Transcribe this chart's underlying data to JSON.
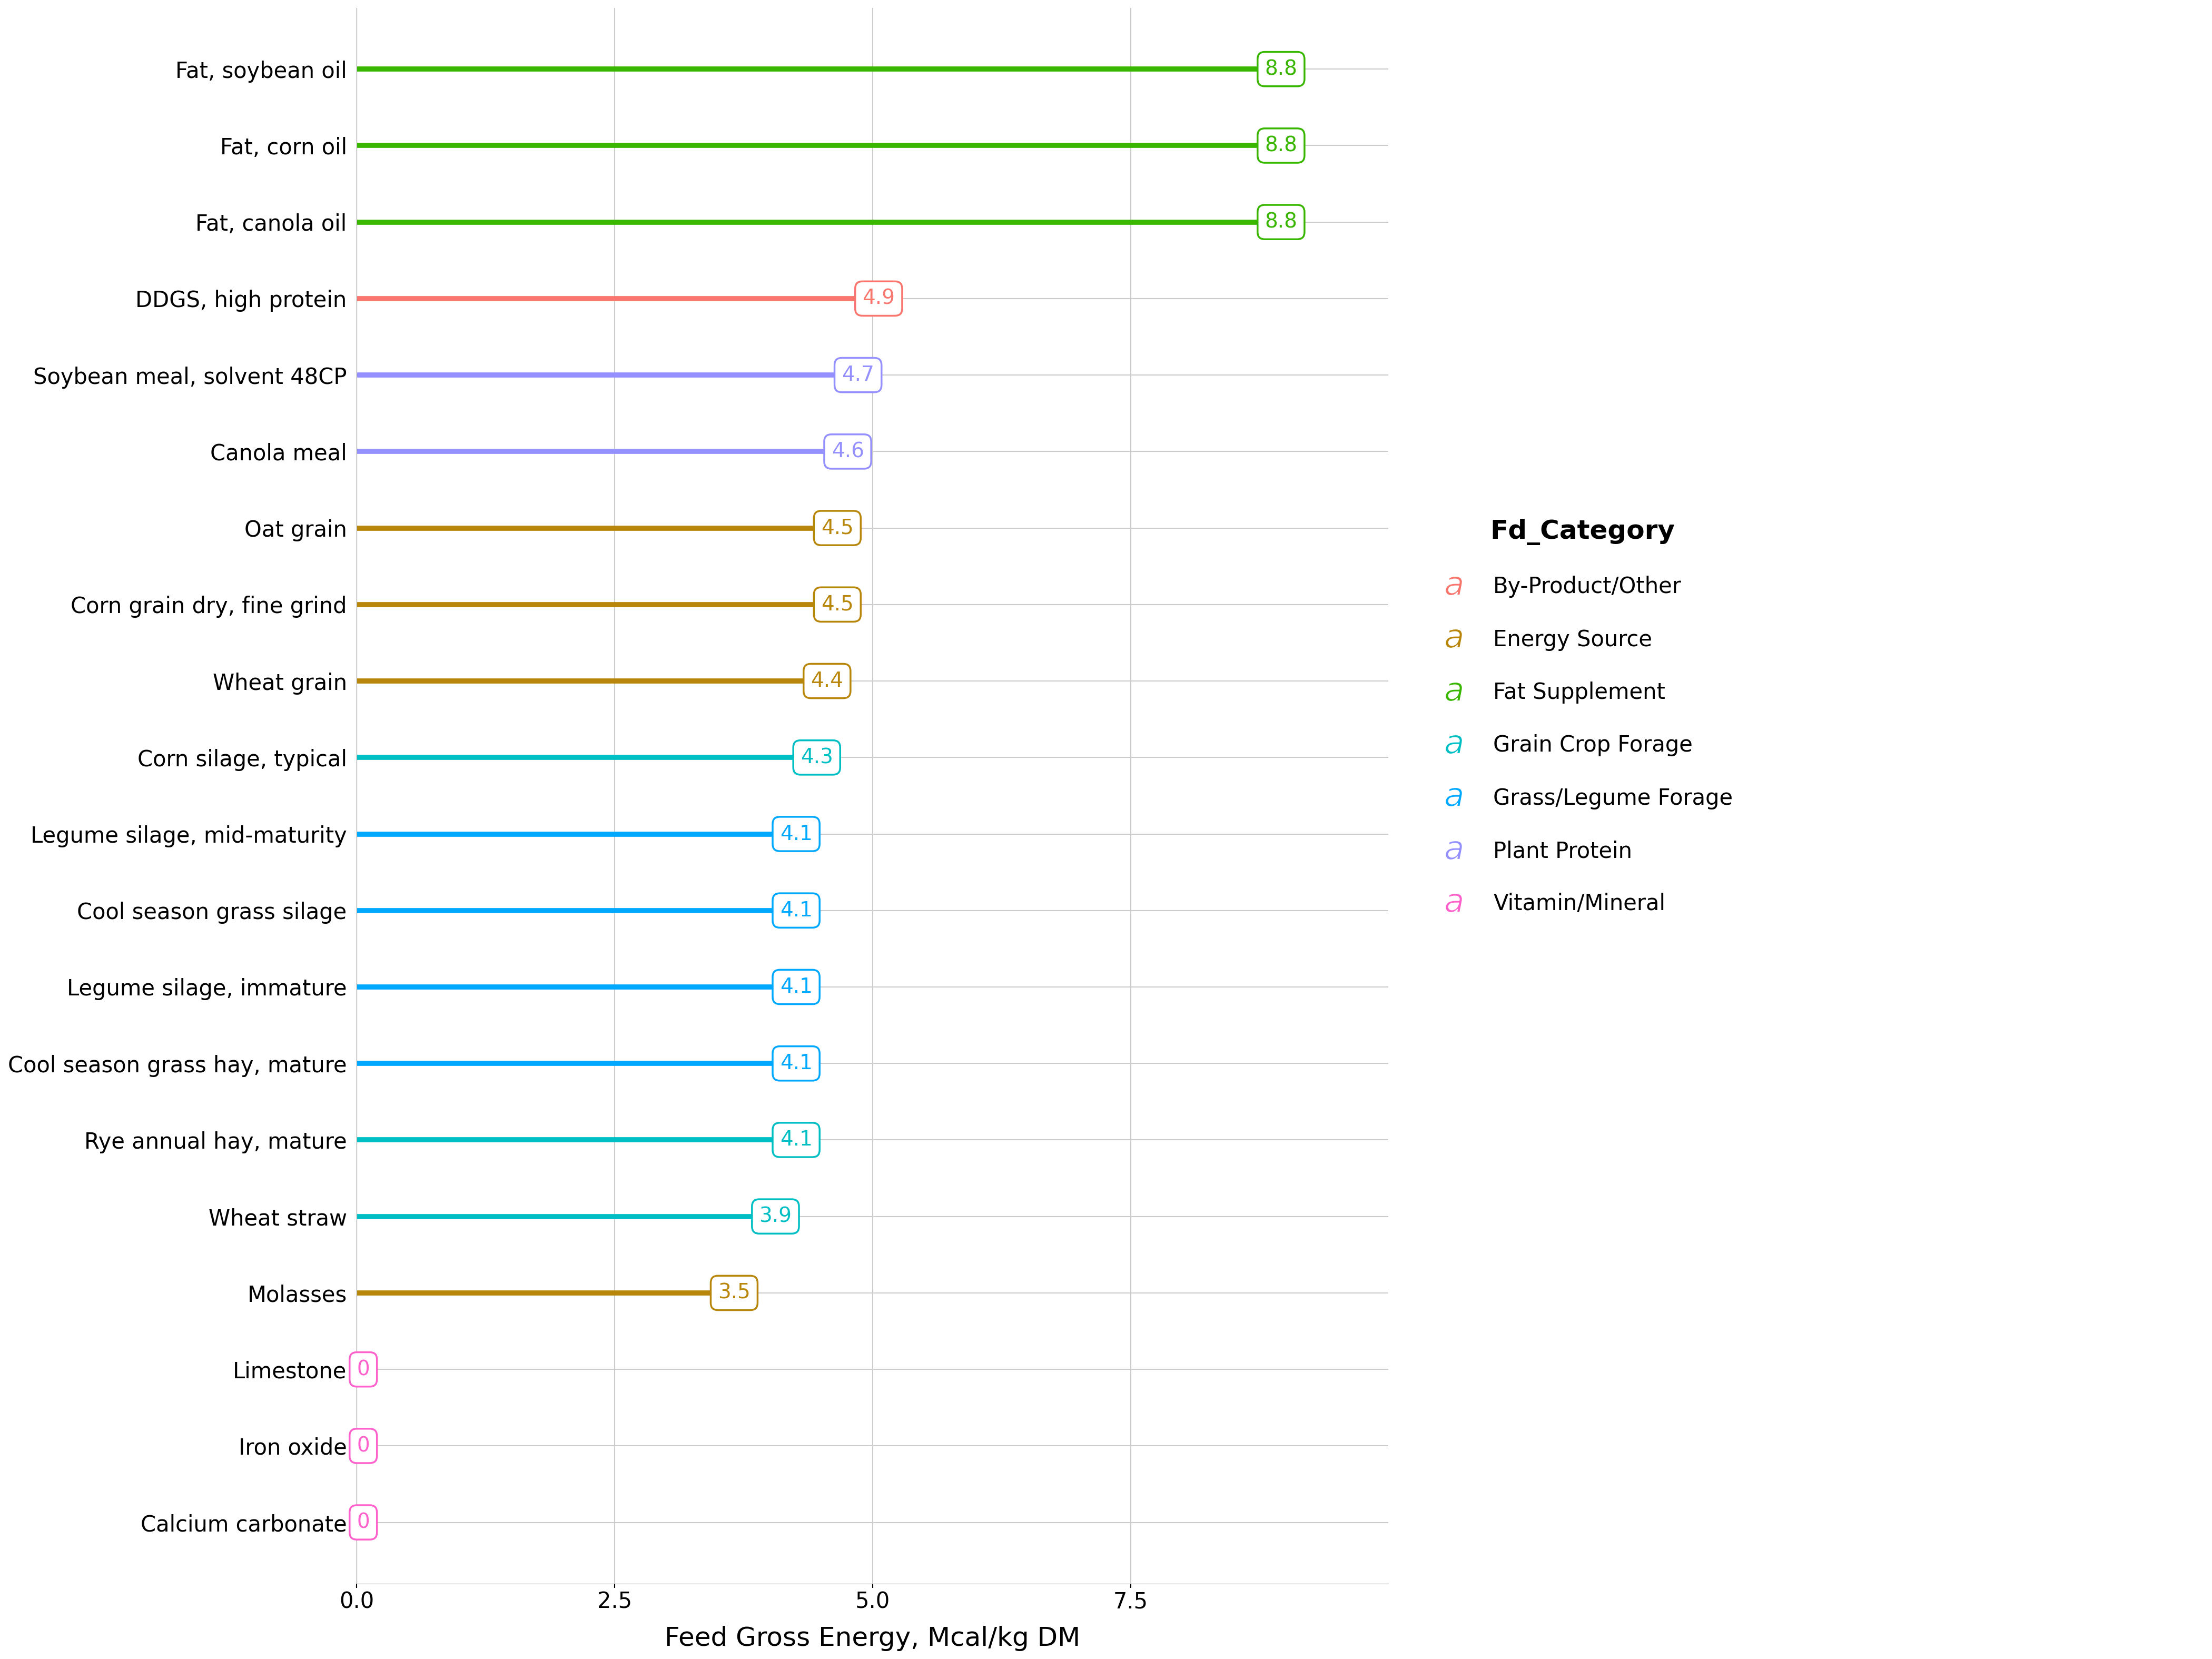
{
  "feeds": [
    {
      "name": "Fat, soybean oil",
      "value": 8.8,
      "category": "Fat Supplement"
    },
    {
      "name": "Fat, corn oil",
      "value": 8.8,
      "category": "Fat Supplement"
    },
    {
      "name": "Fat, canola oil",
      "value": 8.8,
      "category": "Fat Supplement"
    },
    {
      "name": "DDGS, high protein",
      "value": 4.9,
      "category": "By-Product/Other"
    },
    {
      "name": "Soybean meal, solvent 48CP",
      "value": 4.7,
      "category": "Plant Protein"
    },
    {
      "name": "Canola meal",
      "value": 4.6,
      "category": "Plant Protein"
    },
    {
      "name": "Oat grain",
      "value": 4.5,
      "category": "Energy Source"
    },
    {
      "name": "Corn grain dry, fine grind",
      "value": 4.5,
      "category": "Energy Source"
    },
    {
      "name": "Wheat grain",
      "value": 4.4,
      "category": "Energy Source"
    },
    {
      "name": "Corn silage, typical",
      "value": 4.3,
      "category": "Grain Crop Forage"
    },
    {
      "name": "Legume silage, mid-maturity",
      "value": 4.1,
      "category": "Grass/Legume Forage"
    },
    {
      "name": "Cool season grass silage",
      "value": 4.1,
      "category": "Grass/Legume Forage"
    },
    {
      "name": "Legume silage, immature",
      "value": 4.1,
      "category": "Grass/Legume Forage"
    },
    {
      "name": "Cool season grass hay, mature",
      "value": 4.1,
      "category": "Grass/Legume Forage"
    },
    {
      "name": "Rye annual hay, mature",
      "value": 4.1,
      "category": "Grain Crop Forage"
    },
    {
      "name": "Wheat straw",
      "value": 3.9,
      "category": "Grain Crop Forage"
    },
    {
      "name": "Molasses",
      "value": 3.5,
      "category": "Energy Source"
    },
    {
      "name": "Limestone",
      "value": 0.0,
      "category": "Vitamin/Mineral"
    },
    {
      "name": "Iron oxide",
      "value": 0.0,
      "category": "Vitamin/Mineral"
    },
    {
      "name": "Calcium carbonate",
      "value": 0.0,
      "category": "Vitamin/Mineral"
    }
  ],
  "category_colors": {
    "By-Product/Other": "#F8766D",
    "Energy Source": "#B8860B",
    "Fat Supplement": "#39B600",
    "Grain Crop Forage": "#00BFC4",
    "Grass/Legume Forage": "#00A9FF",
    "Plant Protein": "#9590FF",
    "Vitamin/Mineral": "#FF61CC"
  },
  "legend_order": [
    "By-Product/Other",
    "Energy Source",
    "Fat Supplement",
    "Grain Crop Forage",
    "Grass/Legume Forage",
    "Plant Protein",
    "Vitamin/Mineral"
  ],
  "xlabel": "Feed Gross Energy, Mcal/kg DM",
  "legend_title": "Fd_Category",
  "xlim": [
    0.0,
    10.0
  ],
  "xticks": [
    0.0,
    2.5,
    5.0,
    7.5
  ],
  "background_color": "#FFFFFF",
  "grid_color": "#CCCCCC",
  "axis_fontsize": 36,
  "tick_fontsize": 30,
  "label_fontsize": 28,
  "legend_title_fontsize": 36,
  "legend_fontsize": 30,
  "line_width": 7.0
}
